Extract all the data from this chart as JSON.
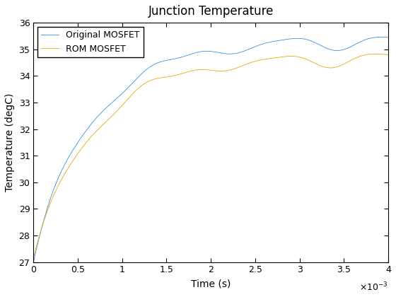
{
  "title": "Junction Temperature",
  "xlabel": "Time (s)",
  "ylabel": "Temperature (degC)",
  "xlim": [
    0,
    0.004
  ],
  "ylim": [
    27,
    36
  ],
  "xticks": [
    0,
    0.0005,
    0.001,
    0.0015,
    0.002,
    0.0025,
    0.003,
    0.0035,
    0.004
  ],
  "xtick_labels": [
    "0",
    "0.5",
    "1",
    "1.5",
    "2",
    "2.5",
    "3",
    "3.5",
    "4"
  ],
  "yticks": [
    27,
    28,
    29,
    30,
    31,
    32,
    33,
    34,
    35,
    36
  ],
  "color_original": "#3090EE",
  "color_rom": "#EAA800",
  "legend_labels": [
    "Original MOSFET",
    "ROM MOSFET"
  ],
  "T_ambient": 27.0,
  "T_final_original": 35.3,
  "T_final_rom": 34.65,
  "tau": 0.00065,
  "noise_amplitude": 0.18,
  "noise_freq": 800,
  "n_points": 5000,
  "linewidth": 0.6,
  "title_fontsize": 12,
  "axis_fontsize": 10,
  "tick_fontsize": 9,
  "legend_fontsize": 9
}
